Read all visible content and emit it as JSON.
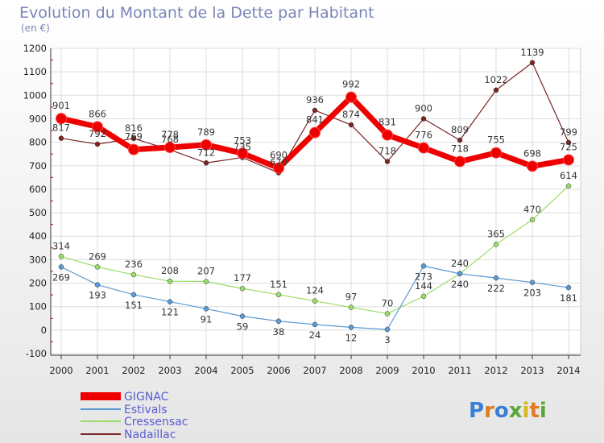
{
  "chart_data": {
    "type": "line",
    "title": "Evolution du Montant de la Dette par Habitant",
    "subtitle": "(en €)",
    "xlabel": "",
    "ylabel": "",
    "x": [
      "2000",
      "2001",
      "2002",
      "2003",
      "2004",
      "2005",
      "2006",
      "2007",
      "2008",
      "2009",
      "2010",
      "2011",
      "2012",
      "2013",
      "2014"
    ],
    "ylim": [
      -100,
      1200
    ],
    "yticks": [
      "-100",
      "0",
      "100",
      "200",
      "300",
      "400",
      "500",
      "600",
      "700",
      "800",
      "900",
      "1000",
      "1100",
      "1200"
    ],
    "grid": true,
    "series": [
      {
        "name": "GIGNAC",
        "color": "#ee0000",
        "values": [
          901,
          866,
          769,
          778,
          789,
          753,
          690,
          841,
          992,
          831,
          776,
          718,
          755,
          698,
          725
        ],
        "labels": [
          "901",
          "866",
          "769",
          "778",
          "789",
          "753",
          "690",
          "841",
          "992",
          "831",
          "776",
          "718",
          "755",
          "698",
          "725"
        ]
      },
      {
        "name": "Estivals",
        "color": "#5b9bd5",
        "values": [
          269,
          193,
          151,
          121,
          91,
          59,
          38,
          24,
          12,
          3,
          273,
          240,
          222,
          203,
          181
        ],
        "labels": [
          "269",
          "193",
          "151",
          "121",
          "91",
          "59",
          "38",
          "24",
          "12",
          "3",
          "273",
          "240",
          "222",
          "203",
          "181"
        ]
      },
      {
        "name": "Cressensac",
        "color": "#99dd66",
        "values": [
          314,
          269,
          236,
          208,
          207,
          177,
          151,
          124,
          97,
          70,
          144,
          240,
          365,
          470,
          614
        ],
        "labels": [
          "314",
          "269",
          "236",
          "208",
          "207",
          "177",
          "151",
          "124",
          "97",
          "70",
          "144",
          "240",
          "365",
          "470",
          "614"
        ]
      },
      {
        "name": "Nadaillac",
        "color": "#7a2424",
        "values": [
          817,
          792,
          816,
          768,
          712,
          735,
          670,
          936,
          874,
          718,
          900,
          809,
          1022,
          1139,
          799
        ],
        "labels": [
          "817",
          "792",
          "816",
          "768",
          "712",
          "735",
          "670",
          "936",
          "874",
          "718",
          "900",
          "809",
          "1022",
          "1139",
          "799"
        ]
      }
    ],
    "legend": [
      "GIGNAC",
      "Estivals",
      "Cressensac",
      "Nadaillac"
    ]
  },
  "logo": {
    "text": "Proxiti"
  },
  "colors": {
    "background": "#ffffff",
    "plot_background": "#ffffff",
    "grid": "#dddddd",
    "axis": "#333333",
    "title": "#7a86b8",
    "legend_text": "#5a5cd0",
    "minor_tick": "#cc0000"
  }
}
